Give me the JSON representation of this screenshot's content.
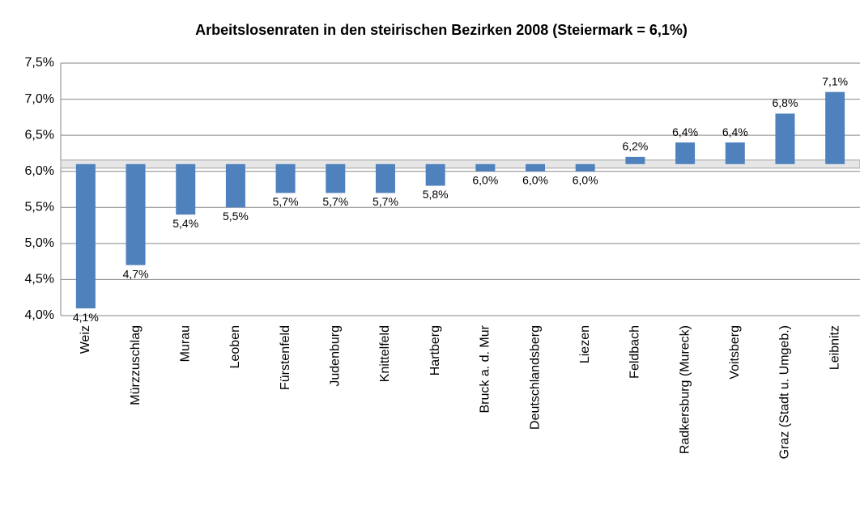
{
  "chart_data": {
    "type": "bar",
    "title": "Arbeitslosenraten in den steirischen Bezirken 2008 (Steiermark = 6,1%)",
    "categories": [
      "Weiz",
      "Mürzzuschlag",
      "Murau",
      "Leoben",
      "Fürstenfeld",
      "Judenburg",
      "Knittelfeld",
      "Hartberg",
      "Bruck a. d. Mur",
      "Deutschlandsberg",
      "Liezen",
      "Feldbach",
      "Radkersburg (Mureck)",
      "Voitsberg",
      "Graz (Stadt u. Umgeb.)",
      "Leibnitz"
    ],
    "values": [
      4.1,
      4.7,
      5.4,
      5.5,
      5.7,
      5.7,
      5.7,
      5.8,
      6.0,
      6.0,
      6.0,
      6.2,
      6.4,
      6.4,
      6.8,
      7.1
    ],
    "value_labels": [
      "4,1%",
      "4,7%",
      "5,4%",
      "5,5%",
      "5,7%",
      "5,7%",
      "5,7%",
      "5,8%",
      "6,0%",
      "6,0%",
      "6,0%",
      "6,2%",
      "6,4%",
      "6,4%",
      "6,8%",
      "7,1%"
    ],
    "baseline": 6.1,
    "color": "#4f81bd",
    "ylim": [
      4.0,
      7.5
    ],
    "yticks": [
      {
        "value": 4.0,
        "label": "4,0%"
      },
      {
        "value": 4.5,
        "label": "4,5%"
      },
      {
        "value": 5.0,
        "label": "5,0%"
      },
      {
        "value": 5.5,
        "label": "5,5%"
      },
      {
        "value": 6.0,
        "label": "6,0%"
      },
      {
        "value": 6.5,
        "label": "6,5%"
      },
      {
        "value": 7.0,
        "label": "7,0%"
      },
      {
        "value": 7.5,
        "label": "7,5%"
      }
    ],
    "grid": true
  }
}
